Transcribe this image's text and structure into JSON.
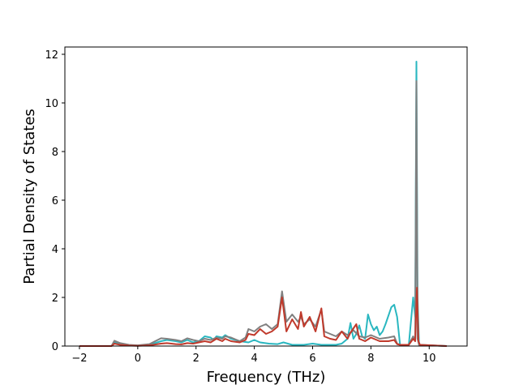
{
  "chart_data": {
    "type": "line",
    "title": "",
    "xlabel": "Frequency (THz)",
    "ylabel": "Partial Density of States",
    "xlim": [
      -2.5,
      11.3
    ],
    "ylim": [
      0,
      12.3
    ],
    "xticks": [
      -2,
      0,
      2,
      4,
      6,
      8,
      10
    ],
    "yticks": [
      0,
      2,
      4,
      6,
      8,
      10,
      12
    ],
    "xtick_labels": [
      "−2",
      "0",
      "2",
      "4",
      "6",
      "8",
      "10"
    ],
    "ytick_labels": [
      "0",
      "2",
      "4",
      "6",
      "8",
      "10",
      "12"
    ],
    "grid": false,
    "series": [
      {
        "color": "#2ab7c0",
        "points": [
          [
            -2.0,
            0
          ],
          [
            -0.9,
            0
          ],
          [
            -0.8,
            0.15
          ],
          [
            -0.6,
            0.08
          ],
          [
            -0.3,
            0.03
          ],
          [
            0,
            0.02
          ],
          [
            0.4,
            0.05
          ],
          [
            0.8,
            0.2
          ],
          [
            1.0,
            0.25
          ],
          [
            1.3,
            0.2
          ],
          [
            1.5,
            0.15
          ],
          [
            1.7,
            0.25
          ],
          [
            1.9,
            0.15
          ],
          [
            2.1,
            0.2
          ],
          [
            2.3,
            0.4
          ],
          [
            2.5,
            0.35
          ],
          [
            2.6,
            0.25
          ],
          [
            2.7,
            0.4
          ],
          [
            2.9,
            0.35
          ],
          [
            3.0,
            0.45
          ],
          [
            3.2,
            0.3
          ],
          [
            3.5,
            0.2
          ],
          [
            3.8,
            0.15
          ],
          [
            4.0,
            0.25
          ],
          [
            4.2,
            0.15
          ],
          [
            4.5,
            0.1
          ],
          [
            4.8,
            0.08
          ],
          [
            5.0,
            0.15
          ],
          [
            5.3,
            0.05
          ],
          [
            5.7,
            0.05
          ],
          [
            6.0,
            0.1
          ],
          [
            6.3,
            0.05
          ],
          [
            6.8,
            0.05
          ],
          [
            7.0,
            0.1
          ],
          [
            7.2,
            0.3
          ],
          [
            7.3,
            0.95
          ],
          [
            7.4,
            0.3
          ],
          [
            7.5,
            0.5
          ],
          [
            7.6,
            0.85
          ],
          [
            7.7,
            0.4
          ],
          [
            7.8,
            0.3
          ],
          [
            7.9,
            1.3
          ],
          [
            8.0,
            0.9
          ],
          [
            8.1,
            0.65
          ],
          [
            8.2,
            0.8
          ],
          [
            8.3,
            0.45
          ],
          [
            8.4,
            0.6
          ],
          [
            8.5,
            0.9
          ],
          [
            8.7,
            1.6
          ],
          [
            8.8,
            1.7
          ],
          [
            8.9,
            1.2
          ],
          [
            9.0,
            0.05
          ],
          [
            9.3,
            0.05
          ],
          [
            9.45,
            2.0
          ],
          [
            9.52,
            1.2
          ],
          [
            9.56,
            11.7
          ],
          [
            9.6,
            2.0
          ],
          [
            9.65,
            0.05
          ],
          [
            10.6,
            0
          ]
        ]
      },
      {
        "color": "#808080",
        "points": [
          [
            -2.0,
            0
          ],
          [
            -0.9,
            0
          ],
          [
            -0.8,
            0.22
          ],
          [
            -0.6,
            0.12
          ],
          [
            -0.3,
            0.05
          ],
          [
            0,
            0.03
          ],
          [
            0.4,
            0.08
          ],
          [
            0.8,
            0.32
          ],
          [
            1.0,
            0.3
          ],
          [
            1.3,
            0.25
          ],
          [
            1.5,
            0.2
          ],
          [
            1.7,
            0.32
          ],
          [
            1.9,
            0.25
          ],
          [
            2.1,
            0.2
          ],
          [
            2.3,
            0.3
          ],
          [
            2.5,
            0.25
          ],
          [
            2.7,
            0.35
          ],
          [
            2.9,
            0.3
          ],
          [
            3.0,
            0.4
          ],
          [
            3.2,
            0.35
          ],
          [
            3.5,
            0.2
          ],
          [
            3.7,
            0.35
          ],
          [
            3.8,
            0.7
          ],
          [
            4.0,
            0.6
          ],
          [
            4.2,
            0.8
          ],
          [
            4.4,
            0.9
          ],
          [
            4.6,
            0.7
          ],
          [
            4.8,
            0.9
          ],
          [
            4.95,
            2.25
          ],
          [
            5.1,
            1.0
          ],
          [
            5.3,
            1.3
          ],
          [
            5.5,
            1.0
          ],
          [
            5.6,
            1.2
          ],
          [
            5.7,
            0.9
          ],
          [
            5.9,
            1.1
          ],
          [
            6.1,
            0.8
          ],
          [
            6.3,
            1.5
          ],
          [
            6.4,
            0.6
          ],
          [
            6.6,
            0.5
          ],
          [
            6.8,
            0.4
          ],
          [
            7.0,
            0.6
          ],
          [
            7.2,
            0.45
          ],
          [
            7.4,
            0.65
          ],
          [
            7.6,
            0.4
          ],
          [
            7.8,
            0.35
          ],
          [
            8.0,
            0.45
          ],
          [
            8.3,
            0.3
          ],
          [
            8.6,
            0.35
          ],
          [
            8.8,
            0.4
          ],
          [
            8.9,
            0.1
          ],
          [
            9.0,
            0.05
          ],
          [
            9.3,
            0.05
          ],
          [
            9.45,
            0.4
          ],
          [
            9.52,
            0.2
          ],
          [
            9.56,
            10.9
          ],
          [
            9.6,
            0.3
          ],
          [
            9.65,
            0.05
          ],
          [
            10.6,
            0
          ]
        ]
      },
      {
        "color": "#c0392b",
        "points": [
          [
            -2.0,
            0
          ],
          [
            -0.9,
            0
          ],
          [
            -0.8,
            0.1
          ],
          [
            -0.6,
            0.05
          ],
          [
            -0.3,
            0.02
          ],
          [
            0,
            0.01
          ],
          [
            0.4,
            0.03
          ],
          [
            0.8,
            0.1
          ],
          [
            1.0,
            0.12
          ],
          [
            1.3,
            0.08
          ],
          [
            1.5,
            0.07
          ],
          [
            1.7,
            0.12
          ],
          [
            1.9,
            0.1
          ],
          [
            2.1,
            0.15
          ],
          [
            2.3,
            0.2
          ],
          [
            2.5,
            0.15
          ],
          [
            2.7,
            0.3
          ],
          [
            2.9,
            0.2
          ],
          [
            3.0,
            0.3
          ],
          [
            3.2,
            0.2
          ],
          [
            3.5,
            0.15
          ],
          [
            3.7,
            0.25
          ],
          [
            3.8,
            0.5
          ],
          [
            4.0,
            0.45
          ],
          [
            4.2,
            0.7
          ],
          [
            4.4,
            0.5
          ],
          [
            4.6,
            0.6
          ],
          [
            4.8,
            0.8
          ],
          [
            4.95,
            2.0
          ],
          [
            5.1,
            0.6
          ],
          [
            5.3,
            1.1
          ],
          [
            5.5,
            0.7
          ],
          [
            5.6,
            1.4
          ],
          [
            5.7,
            0.8
          ],
          [
            5.9,
            1.2
          ],
          [
            6.1,
            0.6
          ],
          [
            6.3,
            1.55
          ],
          [
            6.4,
            0.4
          ],
          [
            6.6,
            0.3
          ],
          [
            6.8,
            0.25
          ],
          [
            7.0,
            0.6
          ],
          [
            7.2,
            0.3
          ],
          [
            7.3,
            0.55
          ],
          [
            7.5,
            0.9
          ],
          [
            7.6,
            0.3
          ],
          [
            7.8,
            0.2
          ],
          [
            8.0,
            0.35
          ],
          [
            8.3,
            0.2
          ],
          [
            8.6,
            0.2
          ],
          [
            8.8,
            0.25
          ],
          [
            8.9,
            0.08
          ],
          [
            9.0,
            0.05
          ],
          [
            9.3,
            0.05
          ],
          [
            9.45,
            0.3
          ],
          [
            9.52,
            0.2
          ],
          [
            9.58,
            2.4
          ],
          [
            9.63,
            0.2
          ],
          [
            9.68,
            0.05
          ],
          [
            10.6,
            0
          ]
        ]
      }
    ]
  }
}
